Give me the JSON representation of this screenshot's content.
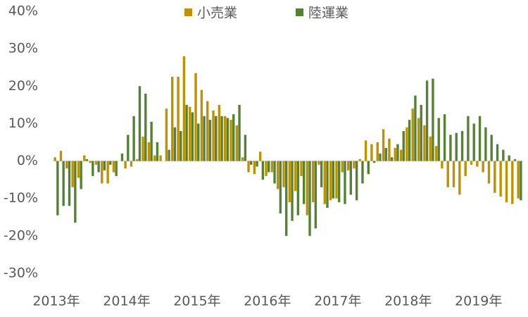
{
  "chart_data": {
    "type": "bar",
    "categories": [
      "2013年",
      null,
      null,
      null,
      null,
      null,
      null,
      null,
      null,
      null,
      null,
      null,
      "2014年",
      null,
      null,
      null,
      null,
      null,
      null,
      null,
      null,
      null,
      null,
      null,
      "2015年",
      null,
      null,
      null,
      null,
      null,
      null,
      null,
      null,
      null,
      null,
      null,
      "2016年",
      null,
      null,
      null,
      null,
      null,
      null,
      null,
      null,
      null,
      null,
      null,
      "2017年",
      null,
      null,
      null,
      null,
      null,
      null,
      null,
      null,
      null,
      null,
      null,
      "2018年",
      null,
      null,
      null,
      null,
      null,
      null,
      null,
      null,
      null,
      null,
      null,
      "2019年",
      null,
      null,
      null,
      null,
      null,
      null,
      null
    ],
    "series": [
      {
        "name": "小売業",
        "color": "#bf9000",
        "values": [
          1,
          2.7,
          -2,
          -7,
          -4.5,
          1.5,
          -0.5,
          -1,
          -6,
          -6,
          -3,
          0,
          -2,
          -1.5,
          0.5,
          6.5,
          5,
          1.5,
          1.5,
          14,
          22.5,
          22.5,
          28,
          14.5,
          23.5,
          19,
          16,
          13.5,
          15,
          12,
          11,
          9.5,
          1,
          -3,
          -3.5,
          2.5,
          -4,
          -3,
          -7.5,
          -7,
          -11,
          -8,
          -4,
          -14.5,
          -11,
          -1,
          -11.5,
          -10.5,
          -10,
          -3,
          -2.5,
          -2,
          0.5,
          5.5,
          4.5,
          5,
          8.5,
          6,
          3.5,
          3,
          9,
          14,
          11.5,
          9.5,
          6.5,
          4,
          -2,
          -7,
          -7,
          -9,
          -4,
          -1,
          -1.5,
          -3,
          -6,
          -8.5,
          -9.5,
          -11,
          -11.5,
          -10
        ]
      },
      {
        "name": "陸運業",
        "color": "#548235",
        "values": [
          -14.5,
          -12,
          -12,
          -16.5,
          -7.5,
          0.5,
          -4,
          -3,
          -2.5,
          -1,
          -4,
          2,
          7,
          12,
          20,
          18,
          10.5,
          5,
          0,
          3,
          9,
          8,
          15,
          13,
          10,
          12,
          11,
          12,
          12,
          11.5,
          12.5,
          15,
          7,
          -1,
          -1.5,
          -5,
          -3,
          -6,
          -14,
          -20,
          -16,
          -14.5,
          -11.5,
          -20,
          -18,
          -7,
          -12.5,
          -10,
          -11,
          -11.5,
          -9,
          -10.5,
          -6,
          -3.5,
          -0.5,
          2,
          3.5,
          1,
          4.5,
          8,
          11,
          17.5,
          15,
          21.5,
          22,
          11.5,
          12.5,
          7,
          7.5,
          8,
          12,
          10,
          12,
          9,
          7,
          4.5,
          3,
          1.5,
          0.5,
          -10.5
        ]
      }
    ],
    "ylim": [
      -30,
      40
    ],
    "yticks": [
      {
        "value": -30,
        "label": "-30%"
      },
      {
        "value": -20,
        "label": "-20%"
      },
      {
        "value": -10,
        "label": "-10%"
      },
      {
        "value": 0,
        "label": "0%"
      },
      {
        "value": 10,
        "label": "10%"
      },
      {
        "value": 20,
        "label": "20%"
      },
      {
        "value": 30,
        "label": "30%"
      },
      {
        "value": 40,
        "label": "40%"
      }
    ],
    "grid": false,
    "legend": "top"
  }
}
